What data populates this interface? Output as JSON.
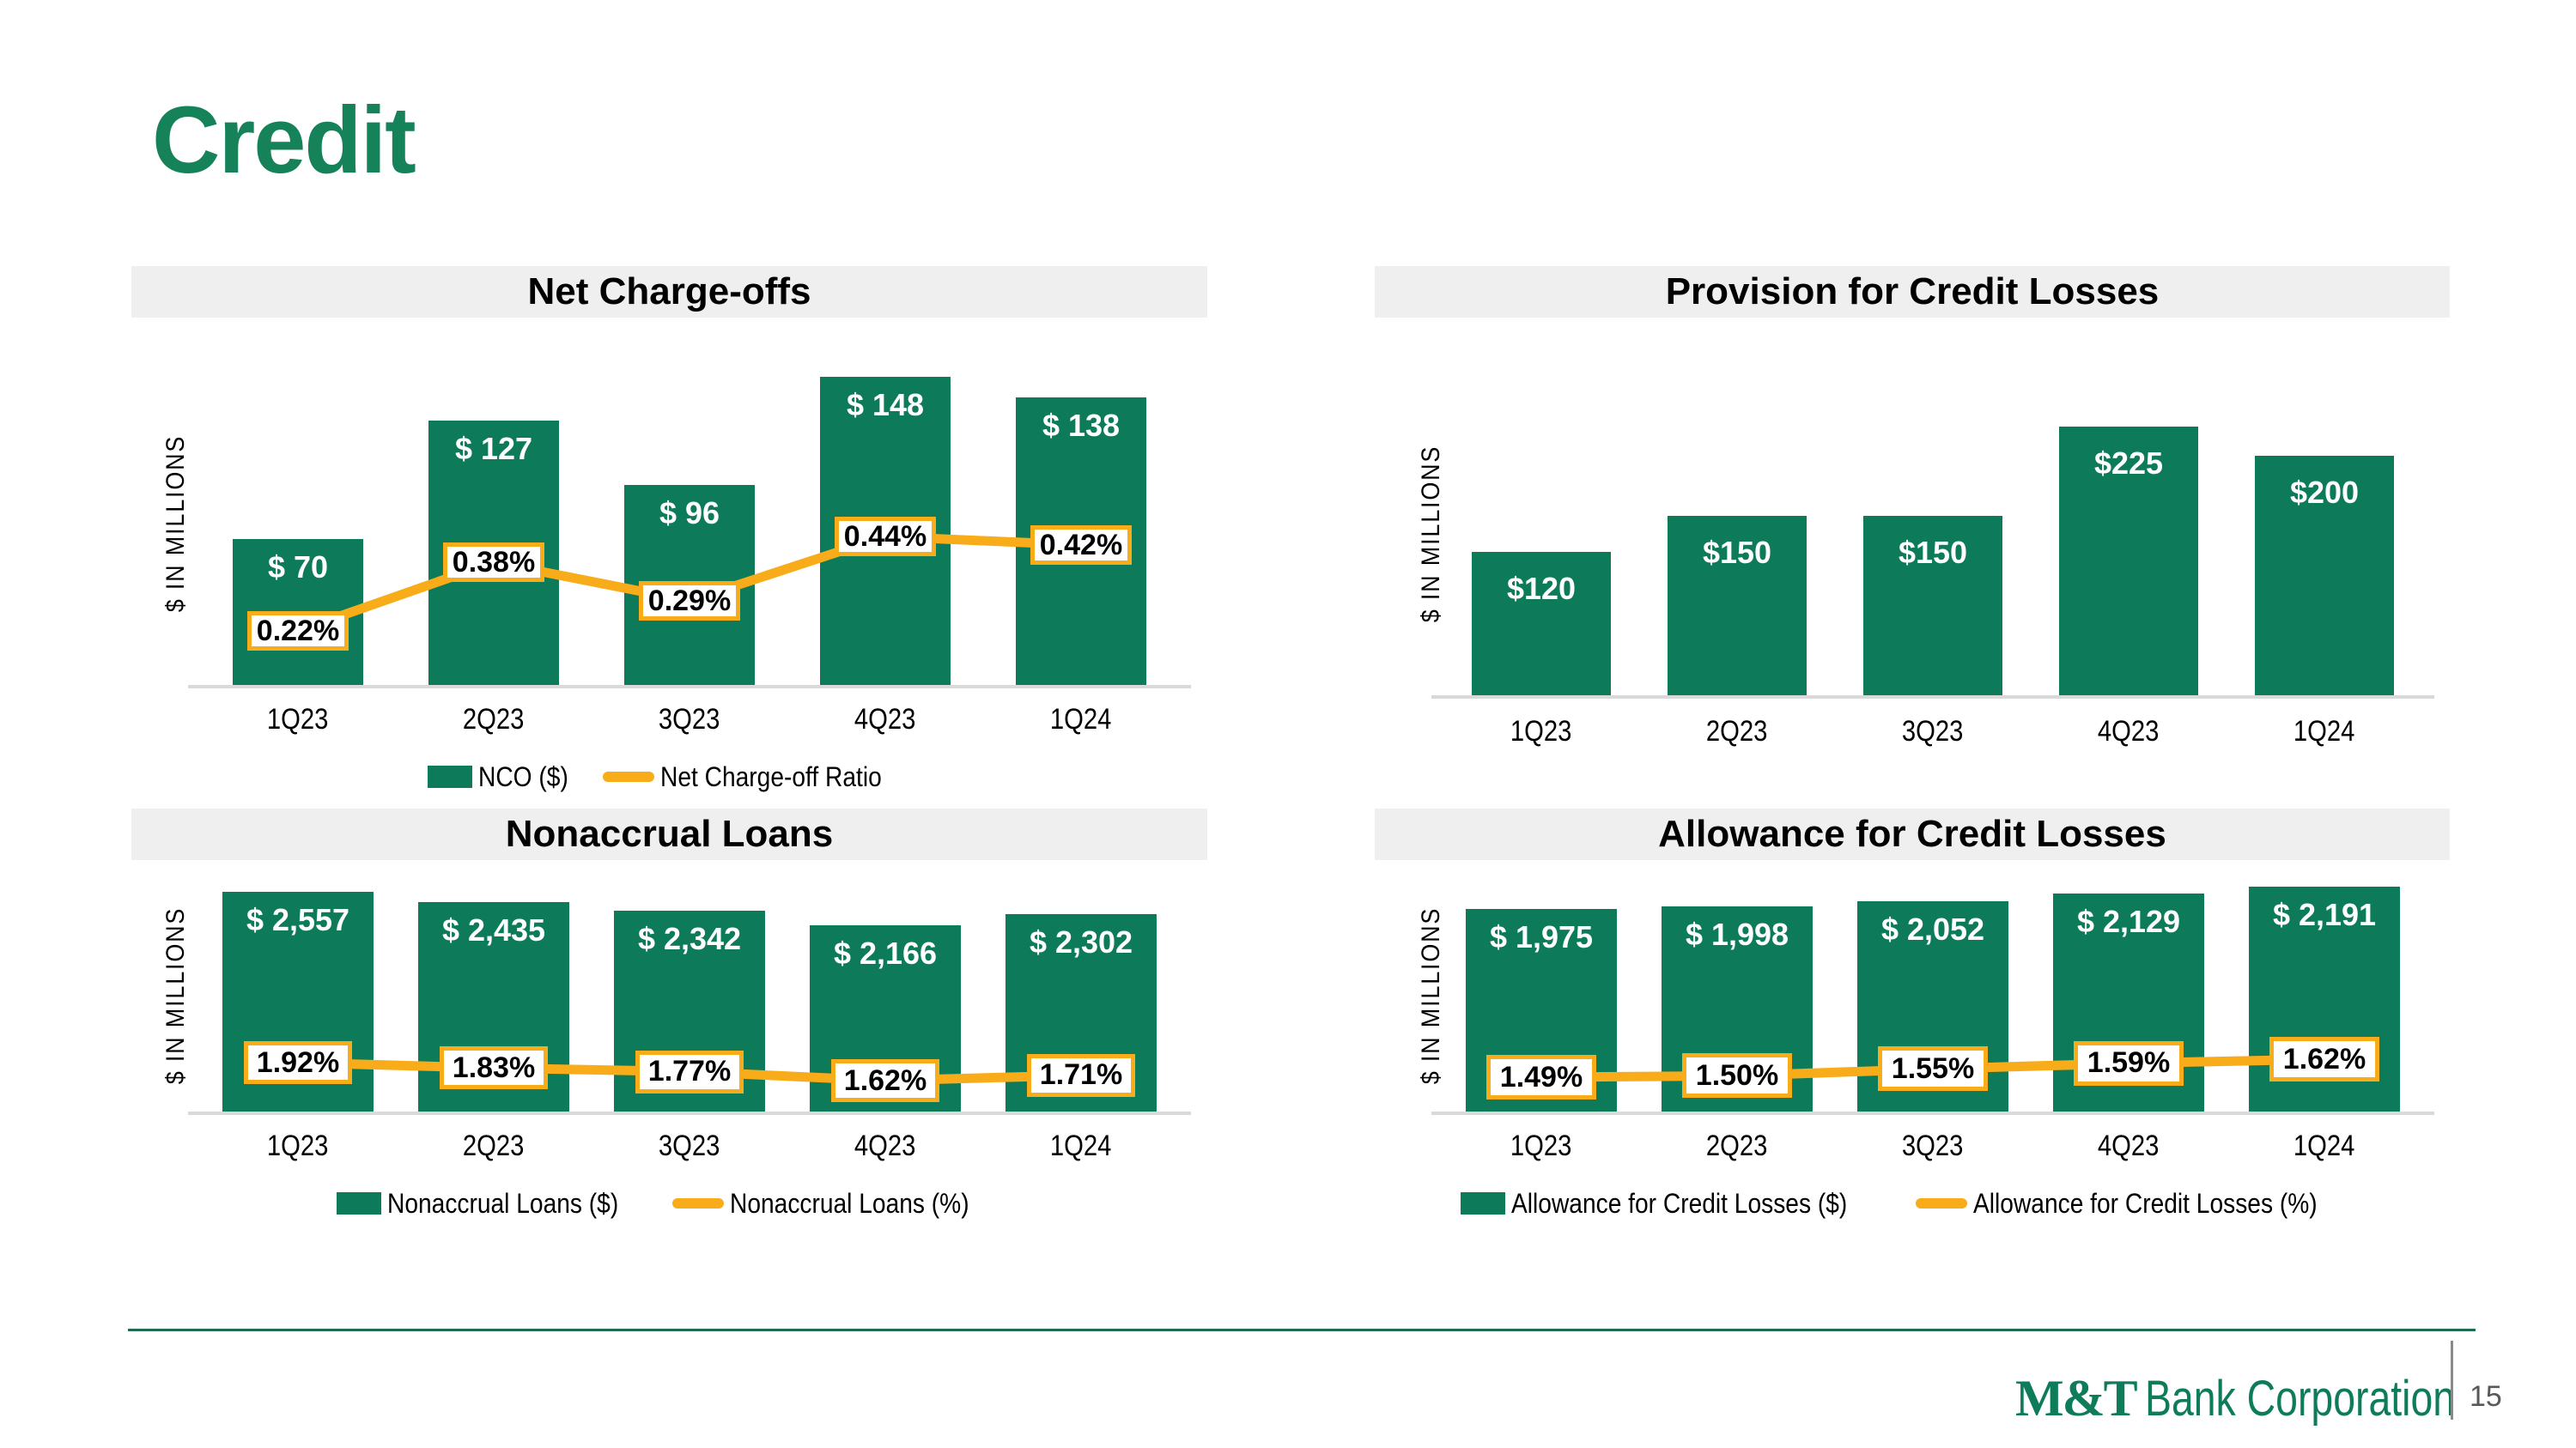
{
  "slide_title": "Credit",
  "footer": {
    "logo_mt": "M&T",
    "logo_rest": "Bank Corporation",
    "page_number": "15"
  },
  "colors": {
    "green": "#0D7B59",
    "title_green": "#15825A",
    "gold": "#F8AC1A",
    "header_band": "#EFEFEF",
    "axis_gray": "#D9D9D9",
    "footer_rule_green": "#1D6C52",
    "logo_green": "#0E7C5B",
    "page_number_gray": "#595959"
  },
  "chart_data": [
    {
      "type": "bar",
      "title": "Net Charge-offs",
      "ylabel": "$ IN MILLIONS",
      "categories": [
        "1Q23",
        "2Q23",
        "3Q23",
        "4Q23",
        "1Q24"
      ],
      "series": [
        {
          "name": "NCO ($)",
          "values": [
            70,
            127,
            96,
            148,
            138
          ],
          "labels": [
            "$ 70",
            "$ 127",
            "$ 96",
            "$ 148",
            "$ 138"
          ]
        }
      ],
      "line": {
        "name": "Net Charge-off Ratio",
        "values": [
          0.22,
          0.38,
          0.29,
          0.44,
          0.42
        ],
        "labels": [
          "0.22%",
          "0.38%",
          "0.29%",
          "0.44%",
          "0.42%"
        ],
        "axis_anchor": {
          "v0": 0.22,
          "px0": 63,
          "v1": 0.44,
          "px1": 173
        }
      },
      "ylim": [
        0,
        155
      ],
      "grid": false,
      "legend_visible": true,
      "legend_position": "bottom"
    },
    {
      "type": "bar",
      "title": "Provision for Credit Losses",
      "ylabel": "$ IN MILLIONS",
      "categories": [
        "1Q23",
        "2Q23",
        "3Q23",
        "4Q23",
        "1Q24"
      ],
      "series": [
        {
          "values": [
            120,
            150,
            150,
            225,
            200
          ],
          "labels": [
            "$120",
            "$150",
            "$150",
            "$225",
            "$200"
          ]
        }
      ],
      "ylim": [
        0,
        270
      ],
      "grid": false,
      "legend_visible": false
    },
    {
      "type": "bar",
      "title": "Nonaccrual Loans",
      "ylabel": "$ IN MILLIONS",
      "categories": [
        "1Q23",
        "2Q23",
        "3Q23",
        "4Q23",
        "1Q24"
      ],
      "series": [
        {
          "name": "Nonaccrual Loans ($)",
          "values": [
            2557,
            2435,
            2342,
            2166,
            2302
          ],
          "labels": [
            "$ 2,557",
            "$ 2,435",
            "$ 2,342",
            "$ 2,166",
            "$ 2,302"
          ]
        }
      ],
      "line": {
        "name": "Nonaccrual Loans (%)",
        "values": [
          1.92,
          1.83,
          1.77,
          1.62,
          1.71
        ],
        "labels": [
          "1.92%",
          "1.83%",
          "1.77%",
          "1.62%",
          "1.71%"
        ],
        "axis_anchor": {
          "v0": 1.92,
          "px0": 57,
          "v1": 1.62,
          "px1": 36
        }
      },
      "ylim": [
        0,
        2700
      ],
      "grid": false,
      "legend_visible": true,
      "legend_position": "bottom"
    },
    {
      "type": "bar",
      "title": "Allowance for Credit Losses",
      "ylabel": "$ IN MILLIONS",
      "categories": [
        "1Q23",
        "2Q23",
        "3Q23",
        "4Q23",
        "1Q24"
      ],
      "series": [
        {
          "name": "Allowance for Credit Losses ($)",
          "values": [
            1975,
            1998,
            2052,
            2129,
            2191
          ],
          "labels": [
            "$ 1,975",
            "$ 1,998",
            "$ 2,052",
            "$ 2,129",
            "$ 2,191"
          ]
        }
      ],
      "line": {
        "name": "Allowance for Credit Losses (%)",
        "values": [
          1.49,
          1.5,
          1.55,
          1.59,
          1.62
        ],
        "labels": [
          "1.49%",
          "1.50%",
          "1.55%",
          "1.59%",
          "1.62%"
        ],
        "axis_anchor": {
          "v0": 1.49,
          "px0": 40,
          "v1": 1.62,
          "px1": 61
        }
      },
      "ylim": [
        0,
        2260
      ],
      "grid": false,
      "legend_visible": true,
      "legend_position": "bottom"
    }
  ]
}
